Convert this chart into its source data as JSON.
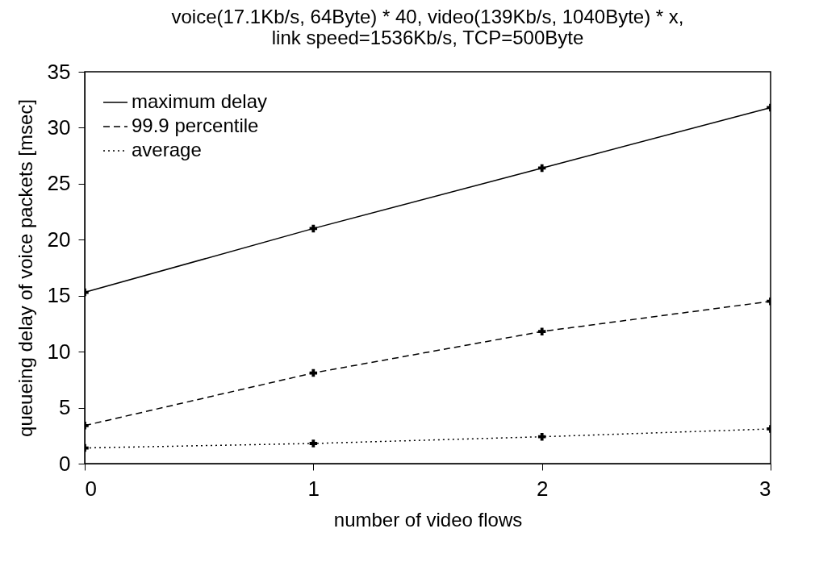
{
  "chart_data": {
    "type": "line",
    "title": "voice(17.1Kb/s, 64Byte) * 40, video(139Kb/s, 1040Byte) * x,\nlink speed=1536Kb/s, TCP=500Byte",
    "xlabel": "number of video flows",
    "ylabel": "queueing delay of voice packets [msec]",
    "x": [
      0,
      1,
      2,
      3
    ],
    "series": [
      {
        "name": "maximum delay",
        "color": "#000000",
        "line_style": "solid",
        "values": [
          15.3,
          21.0,
          26.4,
          31.8
        ]
      },
      {
        "name": "99.9 percentile",
        "color": "#000000",
        "line_style": "dashed",
        "values": [
          3.4,
          8.1,
          11.8,
          14.5
        ]
      },
      {
        "name": "average",
        "color": "#000000",
        "line_style": "dotted",
        "values": [
          1.4,
          1.8,
          2.4,
          3.1
        ]
      }
    ],
    "xlim": [
      0,
      3
    ],
    "xticks": [
      0,
      1,
      2,
      3
    ],
    "ylim": [
      0,
      35
    ],
    "yticks": [
      0,
      5,
      10,
      15,
      20,
      25,
      30,
      35
    ],
    "grid": false,
    "legend": "top left",
    "marker": "cross"
  }
}
